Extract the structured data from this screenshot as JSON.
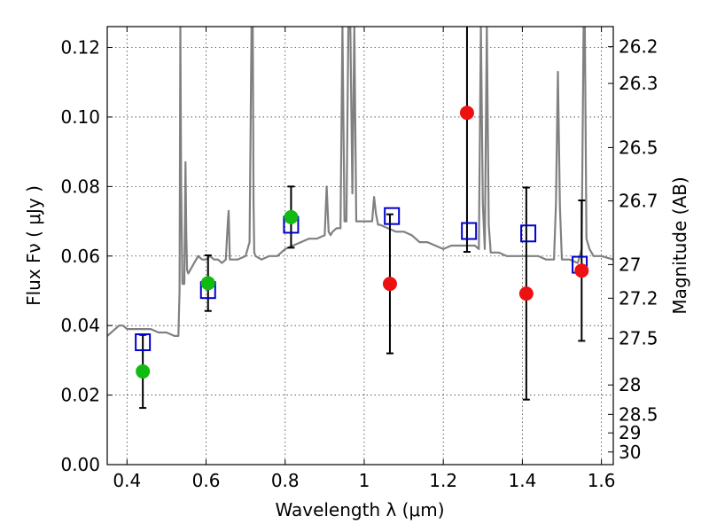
{
  "chart_data": {
    "type": "scatter",
    "title": "",
    "xlabel": "Wavelength  λ (μm)",
    "ylabel": "Flux  Fν  ( μJy )",
    "y2label": "Magnitude (AB)",
    "xlim": [
      0.35,
      1.63
    ],
    "ylim": [
      0.0,
      0.126
    ],
    "x_ticks": [
      0.4,
      0.6,
      0.8,
      1.0,
      1.2,
      1.4,
      1.6
    ],
    "x_tick_labels": [
      "0.4",
      "0.6",
      "0.8",
      "1",
      "1.2",
      "1.4",
      "1.6"
    ],
    "y_ticks": [
      0.0,
      0.02,
      0.04,
      0.06,
      0.08,
      0.1,
      0.12
    ],
    "y_tick_labels": [
      "0.00",
      "0.02",
      "0.04",
      "0.06",
      "0.08",
      "0.10",
      "0.12"
    ],
    "mag_ticks": [
      "26.2",
      "26.3",
      "26.5",
      "26.7",
      "27",
      "27.2",
      "27.5",
      "28",
      "28.5",
      "29",
      "30"
    ],
    "grid": true,
    "colors": {
      "spectrum": "#808080",
      "model": "#0000cc",
      "optical": "#11bb11",
      "nir": "#ee1111",
      "error": "#000000"
    },
    "series": [
      {
        "kind": "spectrum",
        "x": [
          0.35,
          0.36,
          0.37,
          0.38,
          0.39,
          0.4,
          0.42,
          0.44,
          0.46,
          0.48,
          0.5,
          0.52,
          0.53,
          0.533,
          0.535,
          0.537,
          0.54,
          0.545,
          0.548,
          0.55,
          0.552,
          0.555,
          0.56,
          0.57,
          0.58,
          0.59,
          0.6,
          0.61,
          0.62,
          0.63,
          0.64,
          0.65,
          0.655,
          0.657,
          0.66,
          0.665,
          0.68,
          0.7,
          0.71,
          0.715,
          0.718,
          0.72,
          0.722,
          0.725,
          0.74,
          0.76,
          0.78,
          0.8,
          0.82,
          0.84,
          0.86,
          0.88,
          0.9,
          0.905,
          0.91,
          0.915,
          0.92,
          0.93,
          0.94,
          0.945,
          0.95,
          0.955,
          0.96,
          0.965,
          0.97,
          0.975,
          0.98,
          1.0,
          1.02,
          1.025,
          1.03,
          1.035,
          1.04,
          1.06,
          1.08,
          1.1,
          1.12,
          1.14,
          1.16,
          1.18,
          1.2,
          1.22,
          1.24,
          1.26,
          1.28,
          1.29,
          1.295,
          1.3,
          1.305,
          1.31,
          1.315,
          1.32,
          1.34,
          1.36,
          1.38,
          1.4,
          1.42,
          1.44,
          1.46,
          1.48,
          1.485,
          1.49,
          1.495,
          1.5,
          1.52,
          1.54,
          1.55,
          1.555,
          1.558,
          1.562,
          1.57,
          1.58,
          1.6,
          1.63
        ],
        "y": [
          0.037,
          0.038,
          0.039,
          0.04,
          0.04,
          0.039,
          0.039,
          0.039,
          0.039,
          0.038,
          0.038,
          0.037,
          0.037,
          0.05,
          0.126,
          0.08,
          0.052,
          0.052,
          0.087,
          0.066,
          0.056,
          0.055,
          0.056,
          0.058,
          0.06,
          0.059,
          0.059,
          0.06,
          0.059,
          0.059,
          0.058,
          0.059,
          0.07,
          0.073,
          0.059,
          0.059,
          0.059,
          0.06,
          0.064,
          0.126,
          0.126,
          0.075,
          0.061,
          0.06,
          0.059,
          0.06,
          0.06,
          0.062,
          0.063,
          0.064,
          0.065,
          0.065,
          0.066,
          0.08,
          0.067,
          0.066,
          0.067,
          0.068,
          0.068,
          0.126,
          0.07,
          0.07,
          0.126,
          0.126,
          0.078,
          0.126,
          0.07,
          0.07,
          0.07,
          0.077,
          0.072,
          0.069,
          0.069,
          0.068,
          0.067,
          0.067,
          0.066,
          0.064,
          0.064,
          0.063,
          0.062,
          0.063,
          0.063,
          0.063,
          0.063,
          0.062,
          0.126,
          0.075,
          0.062,
          0.126,
          0.069,
          0.061,
          0.061,
          0.06,
          0.06,
          0.06,
          0.06,
          0.06,
          0.059,
          0.059,
          0.075,
          0.113,
          0.074,
          0.059,
          0.059,
          0.058,
          0.062,
          0.126,
          0.126,
          0.065,
          0.062,
          0.06,
          0.06,
          0.059
        ]
      },
      {
        "kind": "model",
        "x": [
          0.44,
          0.605,
          0.815,
          1.07,
          1.265,
          1.415,
          1.545
        ],
        "y": [
          0.0352,
          0.0502,
          0.069,
          0.0715,
          0.0672,
          0.0665,
          0.0575
        ]
      },
      {
        "kind": "optical",
        "x": [
          0.44,
          0.605,
          0.815
        ],
        "y": [
          0.0268,
          0.0522,
          0.0712
        ],
        "err": [
          0.0105,
          0.008,
          0.0088
        ]
      },
      {
        "kind": "nir",
        "x": [
          1.065,
          1.26,
          1.41,
          1.55
        ],
        "y": [
          0.052,
          0.1012,
          0.0492,
          0.0558
        ],
        "err": [
          0.02,
          0.04,
          0.0305,
          0.0202
        ]
      }
    ]
  }
}
